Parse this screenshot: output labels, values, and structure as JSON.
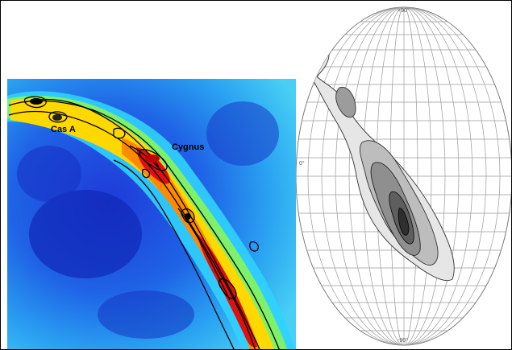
{
  "map_labels": {
    "cas_a": "Cas A",
    "cygnus": "Cygnus"
  },
  "grid_ticks": {
    "top": "+90°",
    "left": "0°",
    "bottom": "-90°"
  },
  "colors": {
    "frame": "#000000",
    "background": "#ffffff",
    "heatmap_low": "#1a2bd6",
    "heatmap_mid": "#2fd0ff",
    "heatmap_band": "#ffd400",
    "heatmap_peak": "#e01010",
    "grid_line": "#9a9a9a",
    "contour_fill_levels": [
      "#e4e4e4",
      "#bdbdbd",
      "#8f8f8f",
      "#5e5e5e",
      "#2f2f2f"
    ]
  }
}
